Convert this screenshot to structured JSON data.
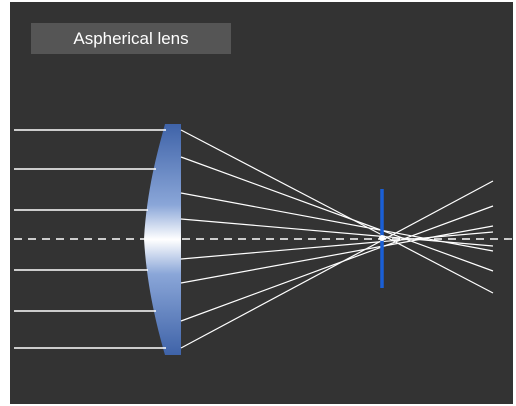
{
  "title": "Aspherical lens",
  "colors": {
    "background": "#333333",
    "label_bg": "#555555",
    "ray": "#ffffff",
    "lens_edge": "#3f63a8",
    "lens_center": "#ffffff",
    "focal_marker": "#1a5fd6"
  }
}
